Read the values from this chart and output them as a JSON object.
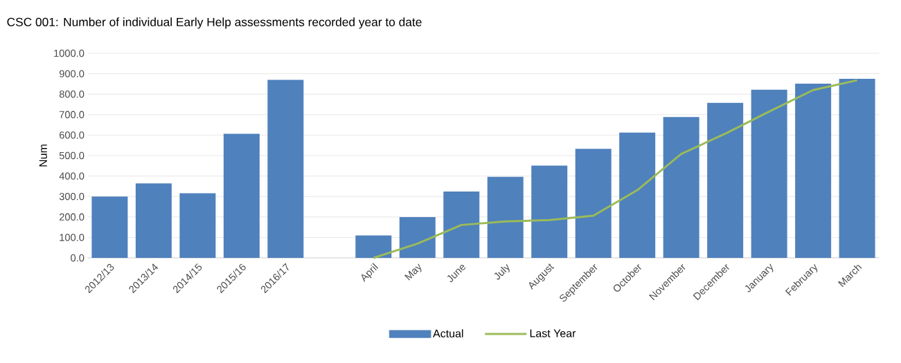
{
  "chart_data": {
    "type": "bar",
    "title": "CSC 001: Number of individual Early Help assessments recorded year to date",
    "ylabel": "Num",
    "categories": [
      "2012/13",
      "2013/14",
      "2014/15",
      "2015/16",
      "2016/17",
      null,
      "April",
      "May",
      "June",
      "July",
      "August",
      "September",
      "October",
      "November",
      "December",
      "January",
      "February",
      "March"
    ],
    "series": [
      {
        "name": "Actual",
        "color": "#4f81bd",
        "values": [
          300,
          364,
          316,
          606,
          870,
          null,
          110,
          199,
          324,
          396,
          451,
          533,
          612,
          688,
          758,
          822,
          851,
          875
        ]
      },
      {
        "name": "Last Year",
        "type": "line",
        "color": "#9bbb59",
        "values": [
          null,
          null,
          null,
          null,
          null,
          null,
          0,
          70,
          161,
          178,
          185,
          206,
          331,
          508,
          607,
          715,
          820,
          868
        ]
      }
    ],
    "ylim": [
      0,
      1000
    ],
    "yticks": [
      {
        "value": 0,
        "label": "0.0"
      },
      {
        "value": 100,
        "label": "100.0"
      },
      {
        "value": 200,
        "label": "200.0"
      },
      {
        "value": 300,
        "label": "300.0"
      },
      {
        "value": 400,
        "label": "400.0"
      },
      {
        "value": 500,
        "label": "500.0"
      },
      {
        "value": 600,
        "label": "600.0"
      },
      {
        "value": 700,
        "label": "700.0"
      },
      {
        "value": 800,
        "label": "800.0"
      },
      {
        "value": 900,
        "label": "900.0"
      },
      {
        "value": 1000,
        "label": "1000.0"
      }
    ],
    "grid": "y",
    "legend": "bottom"
  }
}
